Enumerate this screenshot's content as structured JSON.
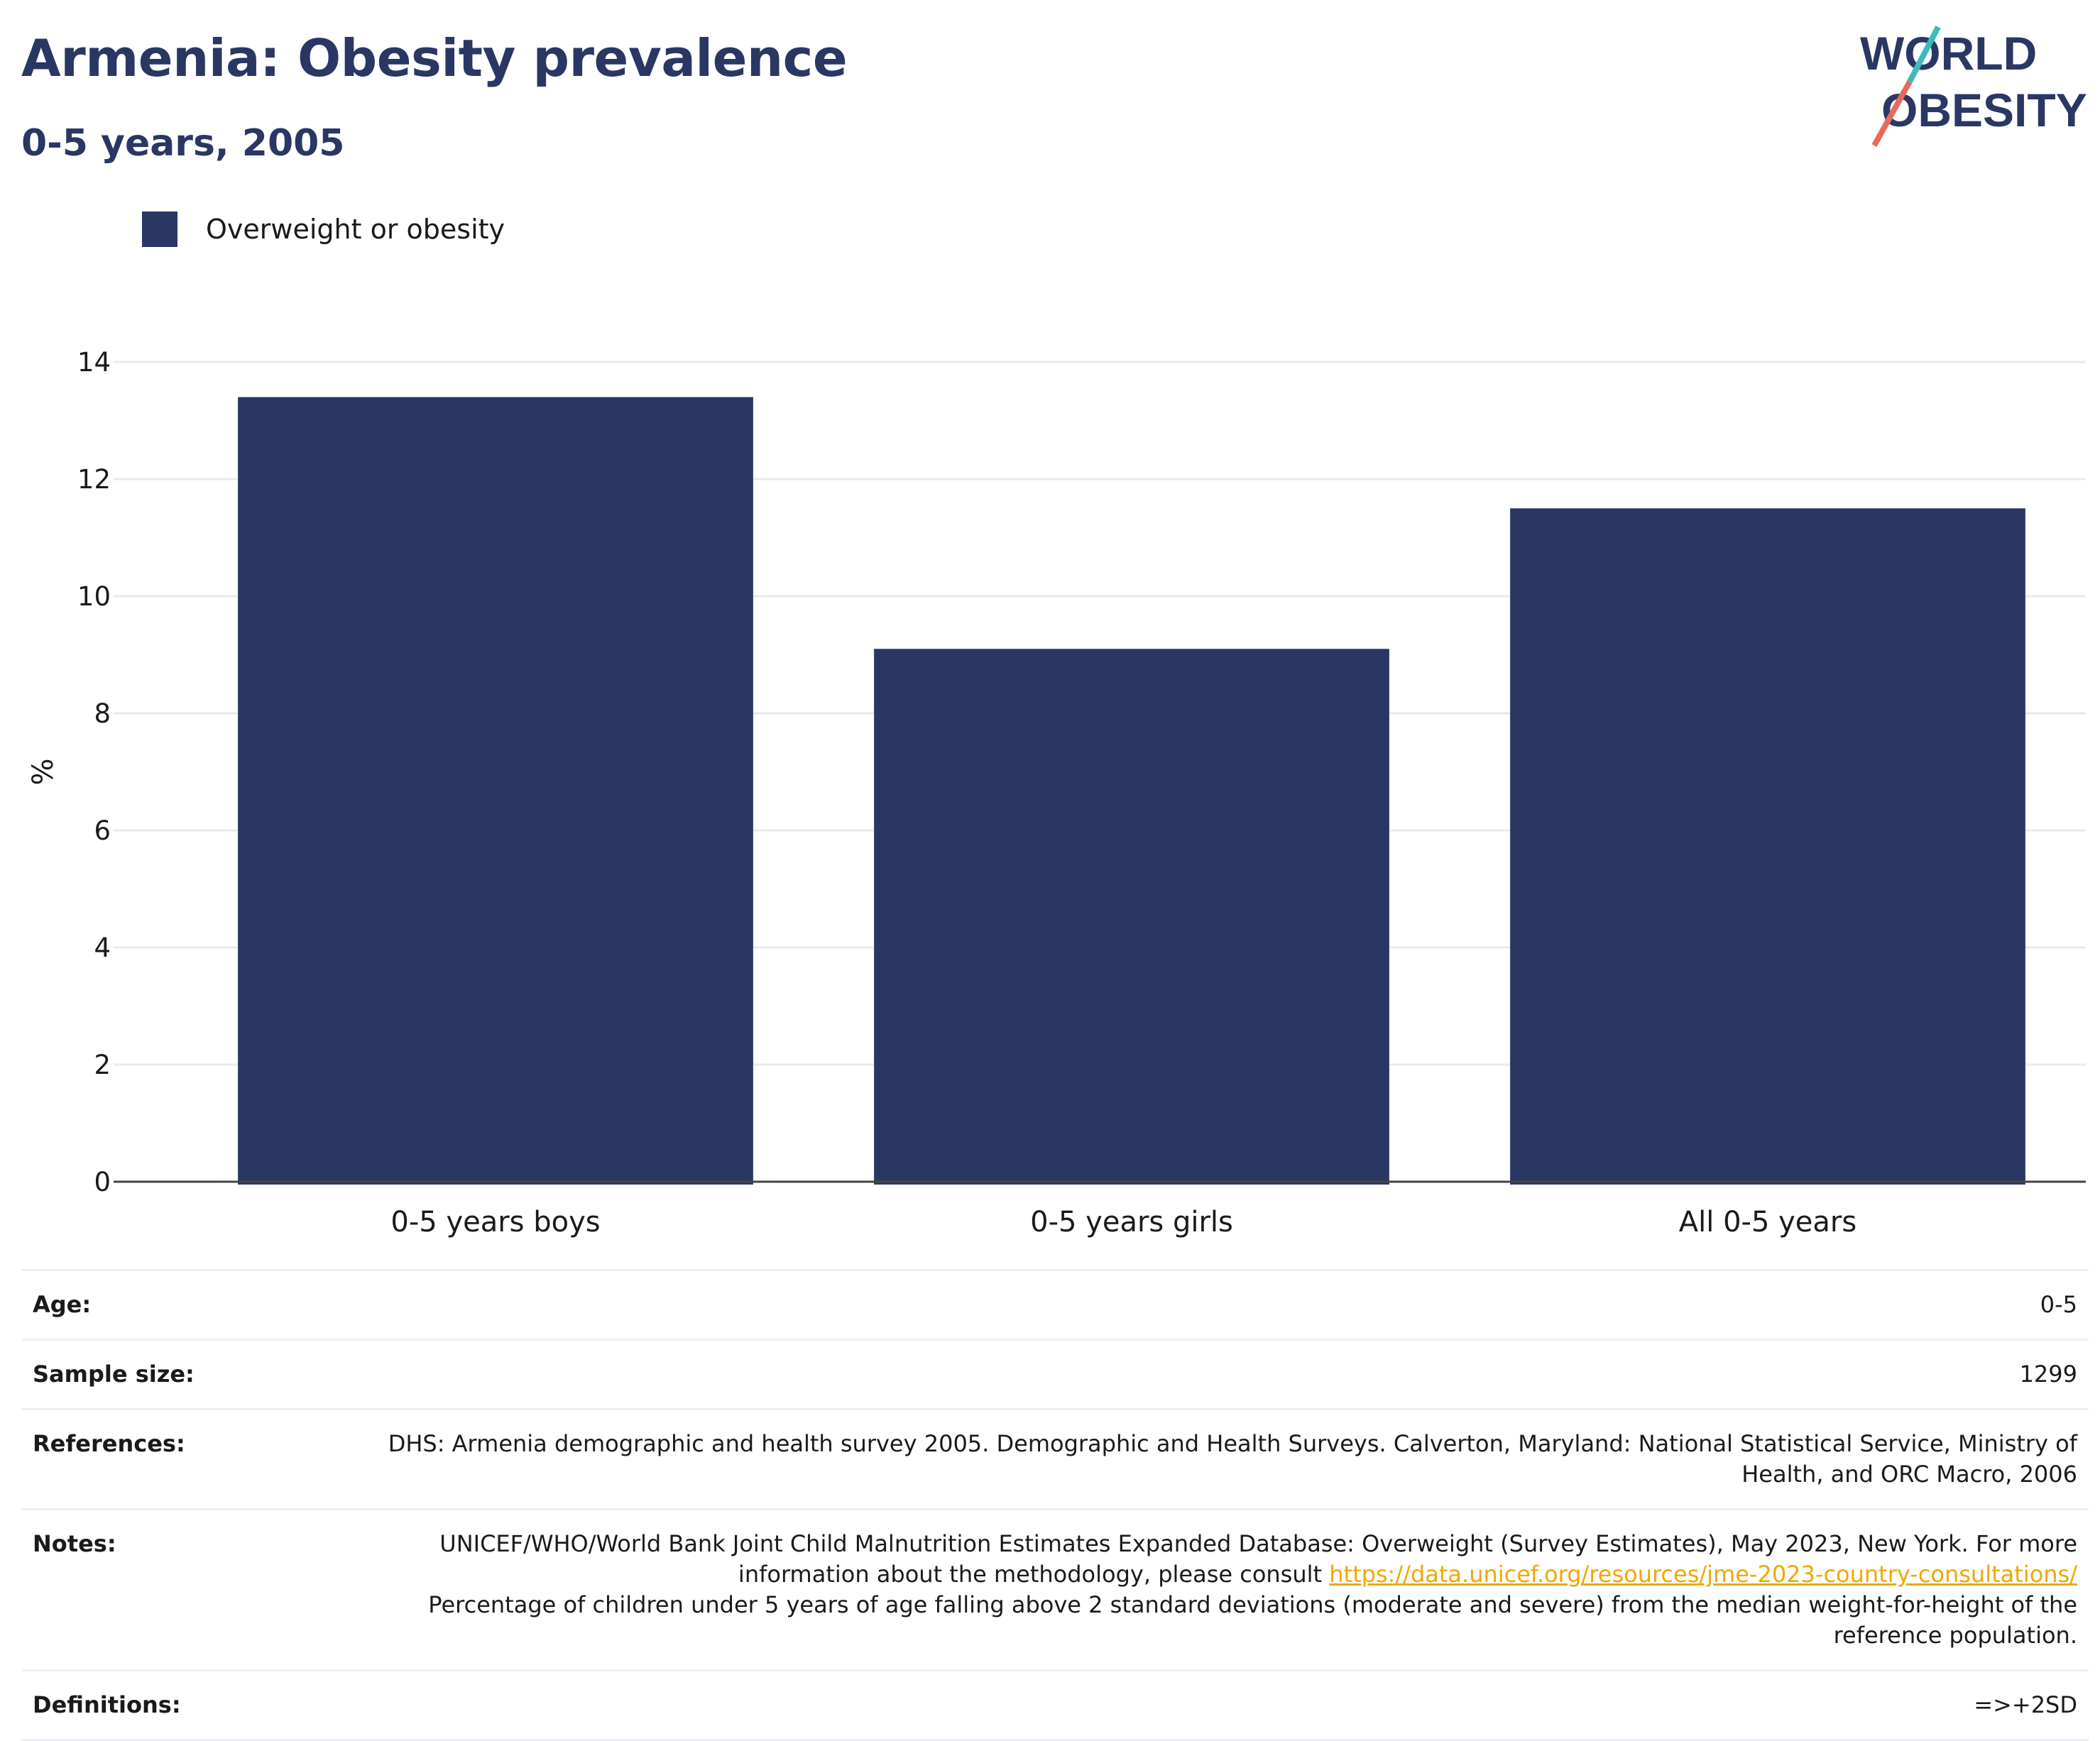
{
  "header": {
    "title": "Armenia: Obesity prevalence",
    "subtitle": "0-5 years, 2005"
  },
  "logo": {
    "line1": "WORLD",
    "line2": "OBESITY"
  },
  "colors": {
    "bar": "#2a3764",
    "title": "#2a3764",
    "link": "#f0a800",
    "logo_teal": "#3bbcb8",
    "logo_coral": "#e56b5d"
  },
  "chart_data": {
    "type": "bar",
    "categories": [
      "0-5 years boys",
      "0-5 years girls",
      "All 0-5 years"
    ],
    "series": [
      {
        "name": "Overweight or obesity",
        "values": [
          13.4,
          9.1,
          11.5
        ]
      }
    ],
    "ylabel": "%",
    "xlabel": "",
    "ylim": [
      0,
      14
    ],
    "yticks": [
      0,
      2,
      4,
      6,
      8,
      10,
      12,
      14
    ],
    "grid": true,
    "legend_position": "top-left"
  },
  "info": {
    "age_label": "Age:",
    "age_value": "0-5",
    "sample_label": "Sample size:",
    "sample_value": "1299",
    "references_label": "References:",
    "references_value": "DHS: Armenia demographic and health survey 2005. Demographic and Health Surveys. Calverton, Maryland: National Statistical Service, Ministry of Health, and ORC Macro, 2006",
    "notes_label": "Notes:",
    "notes_text_1": "UNICEF/WHO/World Bank Joint Child Malnutrition Estimates Expanded Database: Overweight (Survey Estimates), May 2023, New York. For more information about the methodology, please consult ",
    "notes_link": "https://data.unicef.org/resources/jme-2023-country-consultations/",
    "notes_text_2": "Percentage of children under 5 years of age falling above 2 standard deviations (moderate and severe) from the median weight-for-height of the reference population.",
    "definitions_label": "Definitions:",
    "definitions_value": "=>+2SD"
  }
}
